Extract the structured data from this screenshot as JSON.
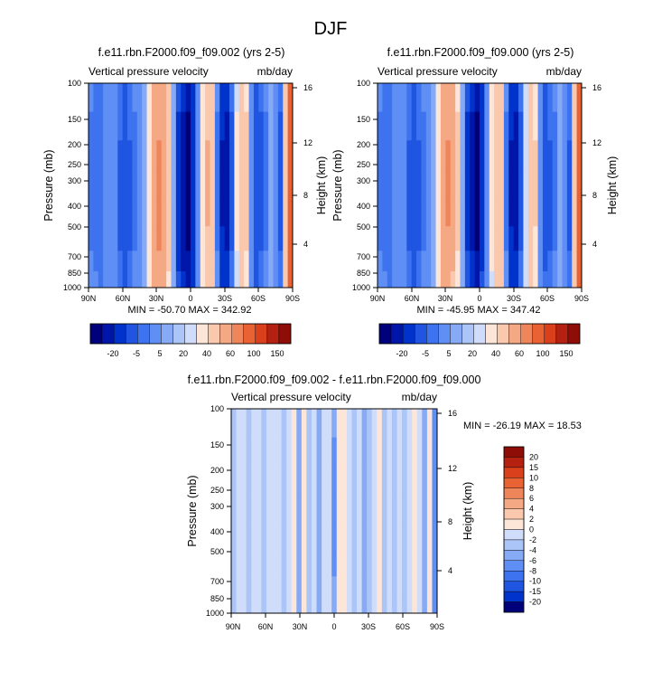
{
  "figure": {
    "title": "DJF"
  },
  "chart_data": [
    {
      "type": "heatmap",
      "title": "f.e11.rbn.F2000.f09_f09.002 (yrs 2-5)",
      "left_subtitle": "Vertical pressure velocity",
      "right_subtitle": "mb/day",
      "ylabel": "Pressure (mb)",
      "ylabel_right": "Height (km)",
      "x_ticks": [
        "90N",
        "60N",
        "30N",
        "0",
        "30S",
        "60S",
        "90S"
      ],
      "y_ticks": [
        "100",
        "150",
        "200",
        "250",
        "300",
        "400",
        "500",
        "700",
        "850",
        "1000"
      ],
      "y_ticks_right": [
        "16",
        "12",
        "8",
        "4"
      ],
      "minmax": "MIN = -50.70  MAX = 342.92",
      "levels": [
        "-20",
        "-5",
        "5",
        "20",
        "40",
        "60",
        "100",
        "150"
      ],
      "colors": [
        "#00007a",
        "#0016a8",
        "#0033cc",
        "#1f55e0",
        "#3d73ee",
        "#5f8ff4",
        "#86aaf6",
        "#abc5f8",
        "#cfdcfa",
        "#fde6d8",
        "#f9c8ad",
        "#f4a883",
        "#ef855b",
        "#e86233",
        "#d9401b",
        "#b52111",
        "#8e0d07"
      ],
      "profile": [
        -6,
        -7,
        -8,
        -5,
        -4,
        -5,
        -9,
        -12,
        -9,
        -6,
        -4,
        0,
        10,
        32,
        45,
        30,
        14,
        -2,
        -16,
        -26,
        -50,
        -18,
        -4,
        8,
        22,
        16,
        -6,
        -22,
        -24,
        -10,
        6,
        18,
        12,
        -4,
        -12,
        -10,
        -6,
        -2,
        -4,
        -10,
        20,
        100
      ]
    },
    {
      "type": "heatmap",
      "title": "f.e11.rbn.F2000.f09_f09.000 (yrs 2-5)",
      "left_subtitle": "Vertical pressure velocity",
      "right_subtitle": "mb/day",
      "ylabel": "Pressure (mb)",
      "ylabel_right": "Height (km)",
      "x_ticks": [
        "90N",
        "60N",
        "30N",
        "0",
        "30S",
        "60S",
        "90S"
      ],
      "y_ticks": [
        "100",
        "150",
        "200",
        "250",
        "300",
        "400",
        "500",
        "700",
        "850",
        "1000"
      ],
      "y_ticks_right": [
        "16",
        "12",
        "8",
        "4"
      ],
      "minmax": "MIN = -45.95  MAX = 347.42",
      "levels": [
        "-20",
        "-5",
        "5",
        "20",
        "40",
        "60",
        "100",
        "150"
      ],
      "colors": [
        "#00007a",
        "#0016a8",
        "#0033cc",
        "#1f55e0",
        "#3d73ee",
        "#5f8ff4",
        "#86aaf6",
        "#abc5f8",
        "#cfdcfa",
        "#fde6d8",
        "#f9c8ad",
        "#f4a883",
        "#ef855b",
        "#e86233",
        "#d9401b",
        "#b52111",
        "#8e0d07"
      ],
      "profile": [
        -6,
        -7,
        -8,
        -5,
        -4,
        -5,
        -9,
        -12,
        -9,
        -6,
        -4,
        0,
        10,
        30,
        42,
        28,
        12,
        -2,
        -15,
        -25,
        -46,
        -17,
        -4,
        7,
        20,
        15,
        -6,
        -21,
        -23,
        -10,
        5,
        16,
        11,
        -4,
        -11,
        -9,
        -6,
        -2,
        -4,
        -9,
        18,
        90
      ]
    },
    {
      "type": "heatmap",
      "title": "f.e11.rbn.F2000.f09_f09.002 - f.e11.rbn.F2000.f09_f09.000",
      "left_subtitle": "Vertical pressure velocity",
      "right_subtitle": "mb/day",
      "ylabel": "Pressure (mb)",
      "ylabel_right": "Height (km)",
      "x_ticks": [
        "90N",
        "60N",
        "30N",
        "0",
        "30S",
        "60S",
        "90S"
      ],
      "y_ticks": [
        "100",
        "150",
        "200",
        "250",
        "300",
        "400",
        "500",
        "700",
        "850",
        "1000"
      ],
      "y_ticks_right": [
        "16",
        "12",
        "8",
        "4"
      ],
      "minmax": "MIN = -26.19  MAX = 18.53",
      "levels": [
        "20",
        "15",
        "10",
        "8",
        "6",
        "4",
        "2",
        "0",
        "-2",
        "-4",
        "-6",
        "-8",
        "-10",
        "-15",
        "-20"
      ],
      "colors": [
        "#8e0d07",
        "#b52111",
        "#d9401b",
        "#e86233",
        "#ef855b",
        "#f4a883",
        "#f9c8ad",
        "#fde6d8",
        "#cfdcfa",
        "#abc5f8",
        "#86aaf6",
        "#5f8ff4",
        "#3d73ee",
        "#1f55e0",
        "#0033cc",
        "#00007a"
      ],
      "profile": [
        -1,
        1,
        1,
        -1,
        1,
        2,
        -2,
        1,
        2,
        1,
        -2,
        2,
        3,
        -3,
        3,
        -2,
        2,
        -4,
        1,
        2,
        -5,
        3,
        4,
        1,
        -2,
        2,
        -3,
        -2,
        2,
        3,
        -2,
        1,
        -1,
        2,
        -1,
        2,
        3,
        1,
        -3,
        4,
        -6
      ]
    }
  ]
}
